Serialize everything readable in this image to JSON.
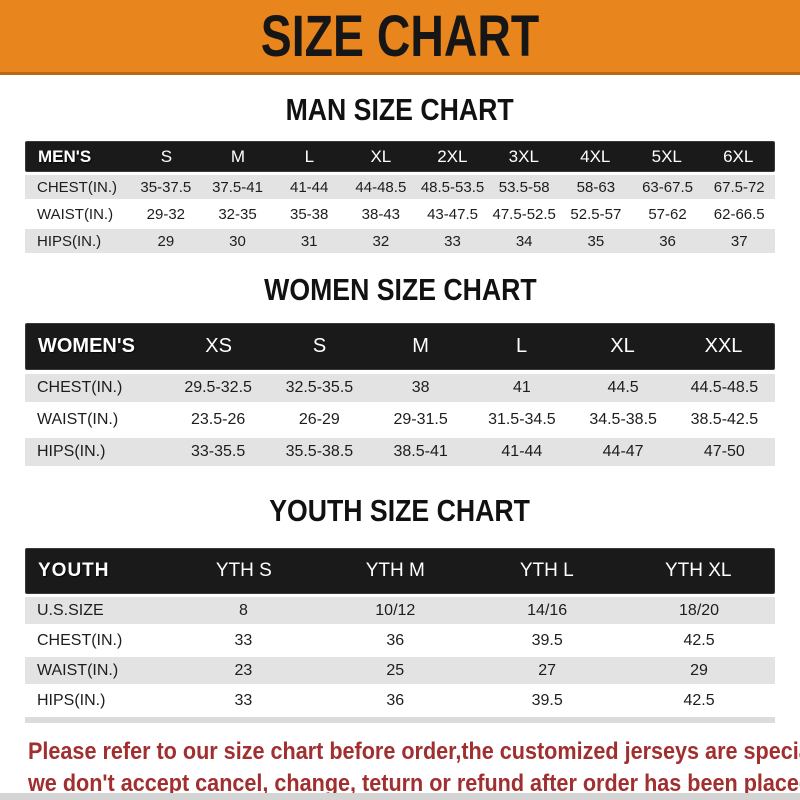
{
  "colors": {
    "banner_bg": "#E8851C",
    "bar_bg": "#1A1A1A",
    "row_gray": "#E3E3E3",
    "warn_red": "#A12F2F"
  },
  "banner": {
    "title": "SIZE CHART"
  },
  "sections": [
    {
      "heading": "MAN SIZE CHART",
      "header_label": "MEN'S",
      "columns": [
        "S",
        "M",
        "L",
        "XL",
        "2XL",
        "3XL",
        "4XL",
        "5XL",
        "6XL"
      ],
      "rows": [
        {
          "label": "CHEST(IN.)",
          "values": [
            "35-37.5",
            "37.5-41",
            "41-44",
            "44-48.5",
            "48.5-53.5",
            "53.5-58",
            "58-63",
            "63-67.5",
            "67.5-72"
          ]
        },
        {
          "label": "WAIST(IN.)",
          "values": [
            "29-32",
            "32-35",
            "35-38",
            "38-43",
            "43-47.5",
            "47.5-52.5",
            "52.5-57",
            "57-62",
            "62-66.5"
          ]
        },
        {
          "label": "HIPS(IN.)",
          "values": [
            "29",
            "30",
            "31",
            "32",
            "33",
            "34",
            "35",
            "36",
            "37"
          ]
        }
      ]
    },
    {
      "heading": "WOMEN SIZE CHART",
      "header_label": "WOMEN'S",
      "columns": [
        "XS",
        "S",
        "M",
        "L",
        "XL",
        "XXL"
      ],
      "rows": [
        {
          "label": "CHEST(IN.)",
          "values": [
            "29.5-32.5",
            "32.5-35.5",
            "38",
            "41",
            "44.5",
            "44.5-48.5"
          ]
        },
        {
          "label": "WAIST(IN.)",
          "values": [
            "23.5-26",
            "26-29",
            "29-31.5",
            "31.5-34.5",
            "34.5-38.5",
            "38.5-42.5"
          ]
        },
        {
          "label": "HIPS(IN.)",
          "values": [
            "33-35.5",
            "35.5-38.5",
            "38.5-41",
            "41-44",
            "44-47",
            "47-50"
          ]
        }
      ]
    },
    {
      "heading": "YOUTH SIZE CHART",
      "header_label": "YOUTH",
      "columns": [
        "YTH S",
        "YTH M",
        "YTH L",
        "YTH XL"
      ],
      "rows": [
        {
          "label": "U.S.SIZE",
          "values": [
            "8",
            "10/12",
            "14/16",
            "18/20"
          ]
        },
        {
          "label": "CHEST(IN.)",
          "values": [
            "33",
            "36",
            "39.5",
            "42.5"
          ]
        },
        {
          "label": "WAIST(IN.)",
          "values": [
            "23",
            "25",
            "27",
            "29"
          ]
        },
        {
          "label": "HIPS(IN.)",
          "values": [
            "33",
            "36",
            "39.5",
            "42.5"
          ]
        }
      ]
    }
  ],
  "disclaimer": {
    "line1": "Please refer to our size chart before order,the customized jerseys are special products,",
    "line2": "we don't accept cancel, change, teturn or refund after order has been placed!"
  }
}
